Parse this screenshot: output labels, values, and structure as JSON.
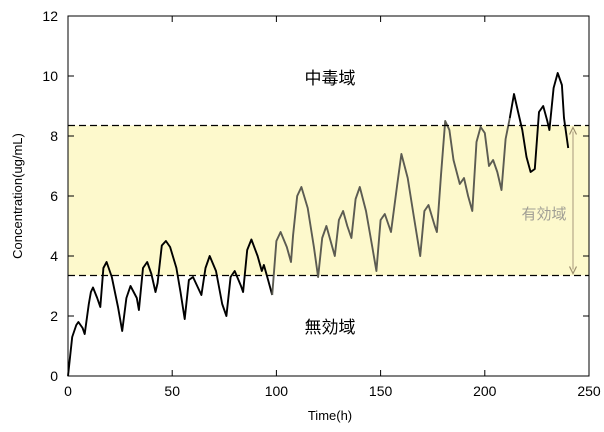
{
  "chart_data": {
    "type": "line",
    "xlabel": "Time(h)",
    "ylabel": "Concentration(ug/mL)",
    "xlim": [
      0,
      250
    ],
    "ylim": [
      0,
      12
    ],
    "x_ticks": [
      0,
      50,
      100,
      150,
      200,
      250
    ],
    "y_ticks": [
      0,
      2,
      4,
      6,
      8,
      10,
      12
    ],
    "grid": false,
    "series": [
      {
        "color": "#000000",
        "points": [
          [
            0,
            0
          ],
          [
            2,
            1.3
          ],
          [
            4,
            1.7
          ],
          [
            5,
            1.8
          ],
          [
            7,
            1.6
          ],
          [
            8,
            1.4
          ],
          [
            10,
            2.4
          ],
          [
            11,
            2.8
          ],
          [
            12,
            2.95
          ],
          [
            14,
            2.6
          ],
          [
            15.5,
            2.3
          ],
          [
            17,
            3.6
          ],
          [
            18.5,
            3.8
          ],
          [
            21,
            3.3
          ],
          [
            24,
            2.3
          ],
          [
            26,
            1.5
          ],
          [
            28,
            2.6
          ],
          [
            30,
            3.0
          ],
          [
            33,
            2.6
          ],
          [
            34,
            2.2
          ],
          [
            36,
            3.6
          ],
          [
            38,
            3.8
          ],
          [
            40,
            3.4
          ],
          [
            42,
            2.8
          ],
          [
            43,
            3.1
          ],
          [
            45,
            4.35
          ],
          [
            47,
            4.5
          ],
          [
            49,
            4.3
          ],
          [
            52,
            3.6
          ],
          [
            54,
            2.8
          ],
          [
            56,
            1.9
          ],
          [
            58,
            3.2
          ],
          [
            60,
            3.3
          ],
          [
            62,
            3.0
          ],
          [
            64,
            2.7
          ],
          [
            66,
            3.6
          ],
          [
            68,
            4.0
          ],
          [
            71,
            3.5
          ],
          [
            74,
            2.4
          ],
          [
            76,
            2.0
          ],
          [
            78,
            3.3
          ],
          [
            80,
            3.5
          ],
          [
            83,
            3.0
          ],
          [
            84,
            2.8
          ],
          [
            86,
            4.2
          ],
          [
            88,
            4.55
          ],
          [
            91,
            4.0
          ],
          [
            93,
            3.5
          ],
          [
            94,
            3.7
          ],
          [
            96,
            3.2
          ],
          [
            98,
            2.7
          ]
        ]
      },
      {
        "color": "#5c5c52",
        "points": [
          [
            98,
            2.7
          ],
          [
            100,
            4.5
          ],
          [
            102,
            4.8
          ],
          [
            105,
            4.3
          ],
          [
            107,
            3.8
          ],
          [
            108,
            4.7
          ],
          [
            110,
            6.0
          ],
          [
            112,
            6.3
          ],
          [
            115,
            5.6
          ],
          [
            118,
            4.3
          ],
          [
            120,
            3.3
          ],
          [
            122,
            4.6
          ],
          [
            124,
            5.0
          ],
          [
            126,
            4.5
          ],
          [
            128,
            4.0
          ],
          [
            130,
            5.2
          ],
          [
            132,
            5.5
          ],
          [
            134,
            5.0
          ],
          [
            136,
            4.6
          ],
          [
            138,
            5.9
          ],
          [
            140,
            6.3
          ],
          [
            143,
            5.5
          ],
          [
            146,
            4.3
          ],
          [
            148,
            3.5
          ],
          [
            150,
            5.2
          ],
          [
            152,
            5.4
          ],
          [
            155,
            4.8
          ],
          [
            158,
            6.4
          ],
          [
            160,
            7.4
          ],
          [
            163,
            6.6
          ],
          [
            166,
            5.3
          ],
          [
            169,
            4.0
          ],
          [
            171,
            5.5
          ],
          [
            173,
            5.7
          ],
          [
            176,
            5.0
          ],
          [
            177,
            4.8
          ],
          [
            179,
            6.7
          ],
          [
            181,
            8.5
          ],
          [
            183,
            8.2
          ],
          [
            185,
            7.2
          ],
          [
            188,
            6.4
          ],
          [
            190,
            6.6
          ],
          [
            192,
            6.0
          ],
          [
            194,
            5.5
          ],
          [
            196,
            7.8
          ],
          [
            198,
            8.3
          ],
          [
            200,
            8.1
          ],
          [
            202,
            7.0
          ],
          [
            204,
            7.2
          ],
          [
            206,
            6.8
          ],
          [
            208,
            6.2
          ],
          [
            210,
            7.9
          ],
          [
            212,
            8.6
          ]
        ]
      },
      {
        "color": "#000000",
        "points": [
          [
            212,
            8.6
          ],
          [
            213,
            9.0
          ],
          [
            214,
            9.4
          ],
          [
            216,
            8.8
          ],
          [
            218,
            8.2
          ],
          [
            220,
            7.3
          ],
          [
            222,
            6.8
          ],
          [
            224,
            6.9
          ],
          [
            226,
            8.8
          ],
          [
            228,
            9.0
          ],
          [
            230,
            8.5
          ],
          [
            231,
            8.2
          ],
          [
            233,
            9.6
          ],
          [
            235,
            10.1
          ],
          [
            237,
            9.7
          ],
          [
            238,
            8.6
          ],
          [
            240,
            7.6
          ]
        ]
      }
    ],
    "therapeutic_range": {
      "lower": 3.35,
      "upper": 8.35,
      "fill": "#fdf9cc"
    },
    "annotations": {
      "toxic": "中毒域",
      "effective": "有効域",
      "ineffective": "無効域"
    }
  }
}
